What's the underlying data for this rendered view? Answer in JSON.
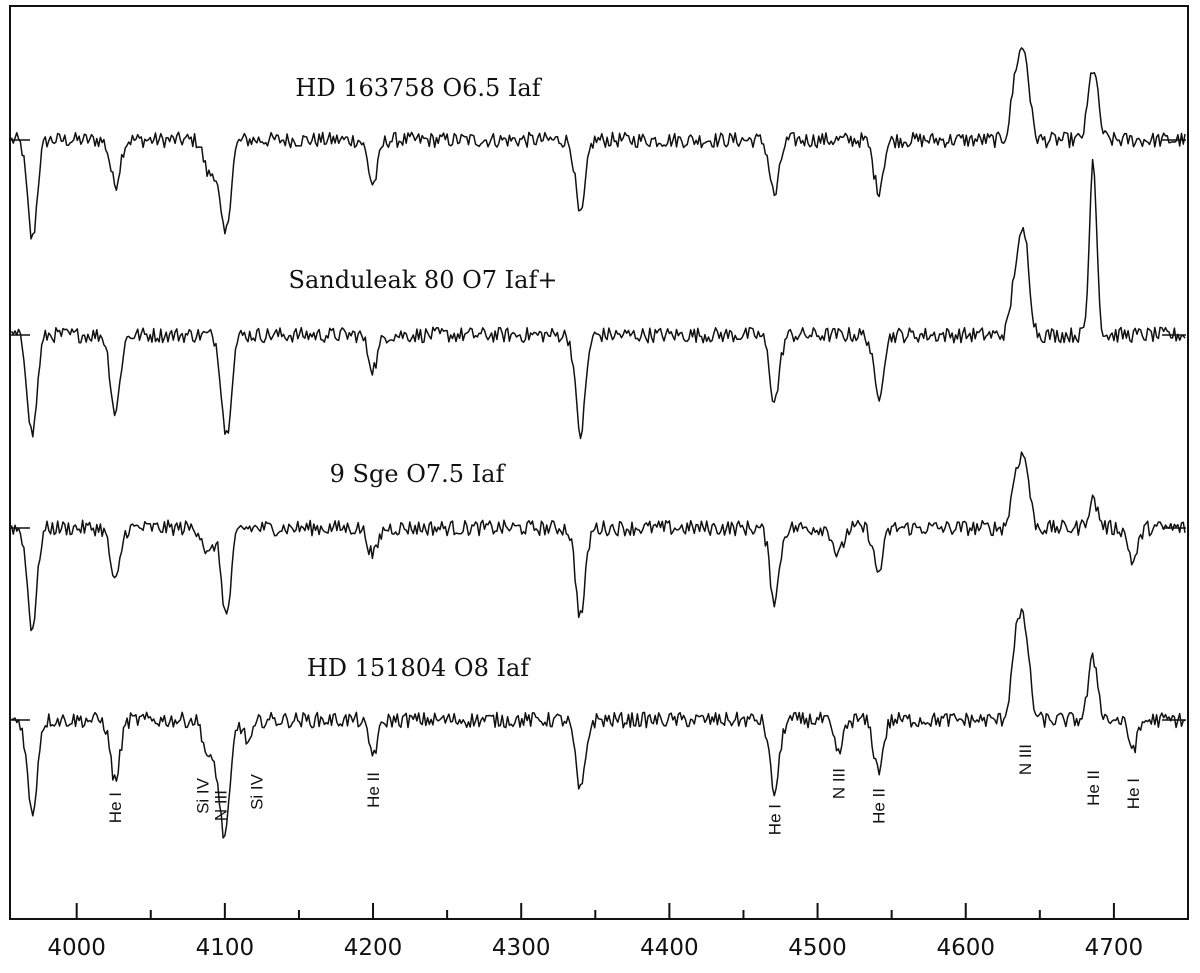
{
  "chart_data": {
    "type": "line",
    "x_range": [
      3955,
      4750
    ],
    "x_ticks": [
      4000,
      4100,
      4200,
      4300,
      4400,
      4500,
      4600,
      4700
    ],
    "x_tick_labels": [
      "4000",
      "4100",
      "4200",
      "4300",
      "4400",
      "4500",
      "4600",
      "4700"
    ],
    "series": [
      {
        "title": "HD 163758 O6.5 Iaf",
        "features": [
          {
            "x": 3970,
            "depth": -0.9
          },
          {
            "x": 4026,
            "depth": -0.4
          },
          {
            "x": 4089,
            "depth": -0.3
          },
          {
            "x": 4097,
            "depth": -0.3
          },
          {
            "x": 4101,
            "depth": -0.7
          },
          {
            "x": 4200,
            "depth": -0.4
          },
          {
            "x": 4340,
            "depth": -0.7
          },
          {
            "x": 4471,
            "depth": -0.5
          },
          {
            "x": 4541,
            "depth": -0.45
          },
          {
            "x": 4634,
            "depth": 0.55
          },
          {
            "x": 4640,
            "depth": 0.7
          },
          {
            "x": 4686,
            "depth": 0.65
          }
        ]
      },
      {
        "title": "Sanduleak 80 O7 Iaf+",
        "features": [
          {
            "x": 3970,
            "depth": -0.9
          },
          {
            "x": 4026,
            "depth": -0.7
          },
          {
            "x": 4101,
            "depth": -0.9
          },
          {
            "x": 4200,
            "depth": -0.3
          },
          {
            "x": 4340,
            "depth": -0.9
          },
          {
            "x": 4471,
            "depth": -0.6
          },
          {
            "x": 4541,
            "depth": -0.55
          },
          {
            "x": 4634,
            "depth": 0.55
          },
          {
            "x": 4640,
            "depth": 0.8
          },
          {
            "x": 4686,
            "depth": 1.6
          }
        ]
      },
      {
        "title": "9 Sge O7.5 Iaf",
        "features": [
          {
            "x": 3970,
            "depth": -0.9
          },
          {
            "x": 4026,
            "depth": -0.5
          },
          {
            "x": 4089,
            "depth": -0.25
          },
          {
            "x": 4101,
            "depth": -0.8
          },
          {
            "x": 4200,
            "depth": -0.25
          },
          {
            "x": 4340,
            "depth": -0.8
          },
          {
            "x": 4471,
            "depth": -0.65
          },
          {
            "x": 4514,
            "depth": -0.25
          },
          {
            "x": 4541,
            "depth": -0.4
          },
          {
            "x": 4634,
            "depth": 0.45
          },
          {
            "x": 4640,
            "depth": 0.55
          },
          {
            "x": 4686,
            "depth": 0.25
          },
          {
            "x": 4713,
            "depth": -0.3
          }
        ]
      },
      {
        "title": "HD 151804 O8 Iaf",
        "features": [
          {
            "x": 3970,
            "depth": -0.85
          },
          {
            "x": 4026,
            "depth": -0.55
          },
          {
            "x": 4089,
            "depth": -0.35
          },
          {
            "x": 4097,
            "depth": -0.45
          },
          {
            "x": 4101,
            "depth": -0.8
          },
          {
            "x": 4116,
            "depth": -0.2
          },
          {
            "x": 4200,
            "depth": -0.3
          },
          {
            "x": 4340,
            "depth": -0.65
          },
          {
            "x": 4471,
            "depth": -0.65
          },
          {
            "x": 4514,
            "depth": -0.3
          },
          {
            "x": 4541,
            "depth": -0.45
          },
          {
            "x": 4634,
            "depth": 0.7
          },
          {
            "x": 4640,
            "depth": 0.75
          },
          {
            "x": 4686,
            "depth": 0.55
          },
          {
            "x": 4713,
            "depth": -0.25
          }
        ]
      }
    ],
    "line_labels": [
      {
        "text": "He I",
        "x": 4026
      },
      {
        "text": "Si IV",
        "x": 4089
      },
      {
        "text": "N III",
        "x": 4097
      },
      {
        "text": "Si IV",
        "x": 4116
      },
      {
        "text": "He II",
        "x": 4200
      },
      {
        "text": "He I",
        "x": 4471
      },
      {
        "text": "N III",
        "x": 4514
      },
      {
        "text": "He II",
        "x": 4541
      },
      {
        "text": "N III",
        "x": 4640
      },
      {
        "text": "He II",
        "x": 4686
      },
      {
        "text": "He I",
        "x": 4713
      }
    ]
  }
}
